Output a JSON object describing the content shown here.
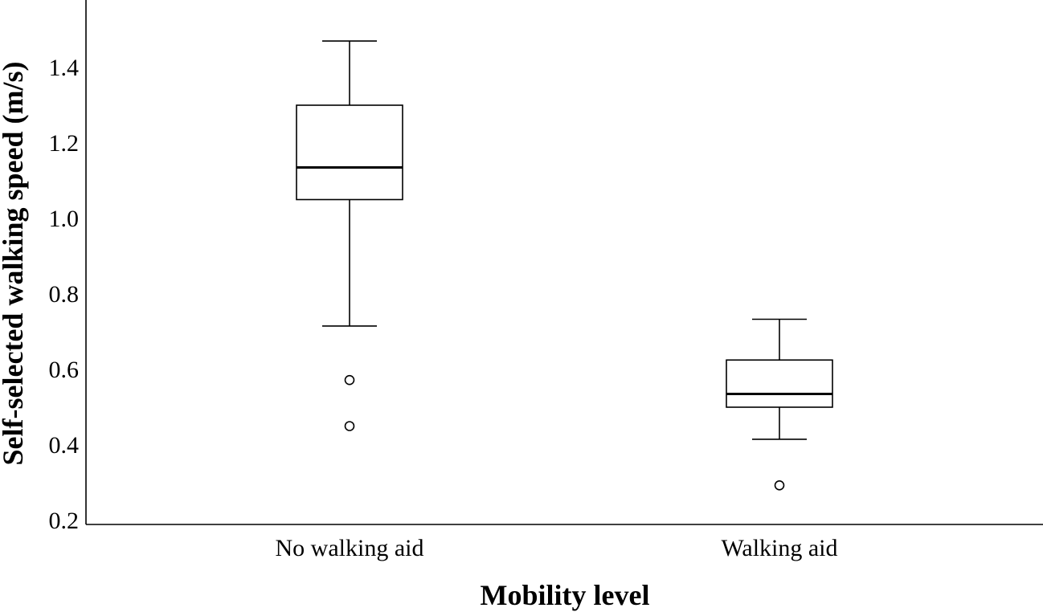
{
  "chart_data": {
    "type": "box",
    "xlabel": "Mobility level",
    "ylabel": "Self-selected walking speed (m/s)",
    "ylim": [
      0.2,
      1.6
    ],
    "yticks": [
      {
        "value": 0.2,
        "label": "0.2"
      },
      {
        "value": 0.4,
        "label": "0.4"
      },
      {
        "value": 0.6,
        "label": "0.6"
      },
      {
        "value": 0.8,
        "label": "0.8"
      },
      {
        "value": 1.0,
        "label": "1.0"
      },
      {
        "value": 1.2,
        "label": "1.2"
      },
      {
        "value": 1.4,
        "label": "1.4"
      }
    ],
    "categories": [
      "No walking aid",
      "Walking aid"
    ],
    "boxes": [
      {
        "category": "No walking aid",
        "whisker_low": 0.715,
        "q1": 1.05,
        "median": 1.135,
        "q3": 1.3,
        "whisker_high": 1.47,
        "outliers": [
          0.572,
          0.45
        ]
      },
      {
        "category": "Walking aid",
        "whisker_low": 0.415,
        "q1": 0.5,
        "median": 0.535,
        "q3": 0.625,
        "whisker_high": 0.733,
        "outliers": [
          0.293
        ]
      }
    ],
    "grid": false,
    "legend": "none"
  }
}
